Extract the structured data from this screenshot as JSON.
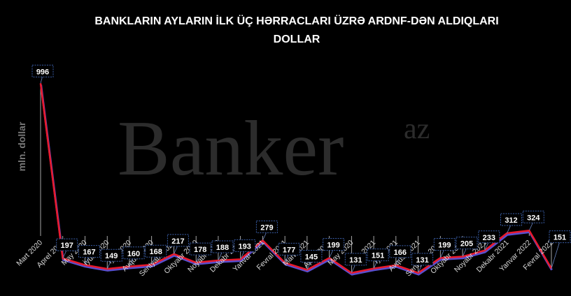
{
  "chart_data": {
    "type": "line",
    "title_lines": [
      "BANKLARIN AYLARIN İLK ÜÇ HƏRRACLARI ÜZRƏ ARDNF-DƏN ALDIQLARI",
      "DOLLAR"
    ],
    "ylabel": "mln. dollar",
    "xlabel": "",
    "categories": [
      "Mart 2020",
      "Aprel 2020",
      "May 2020",
      "İyun 2020",
      "İyul 2020",
      "Avqust 2020",
      "Sentyabr 2020",
      "Oktyabr 2020",
      "Noyabr 2020",
      "Dekabr 2020",
      "Yanvar 2021",
      "Fevral 2021",
      "Mart 2021",
      "Aprel 2021",
      "May 2020",
      "İyun 2021",
      "İyul 2021",
      "Avqust 2021",
      "Sentyabr 2021",
      "Oktyabr 2021",
      "Noyabr 2021",
      "Dekabr 2021",
      "Yanvar 2022",
      "Fevral 2022"
    ],
    "values": [
      996,
      197,
      167,
      149,
      160,
      168,
      217,
      178,
      188,
      193,
      279,
      177,
      145,
      199,
      131,
      151,
      166,
      131,
      199,
      205,
      233,
      312,
      324,
      151
    ],
    "ylim": [
      0,
      1000
    ],
    "grid": false,
    "legend": "none",
    "line_colors": {
      "main": "#e8192c",
      "shadow": "#5a4fcf"
    },
    "label_border_color": "#3a5ea8"
  },
  "watermark": {
    "main": "Banker",
    "sup": "az"
  }
}
